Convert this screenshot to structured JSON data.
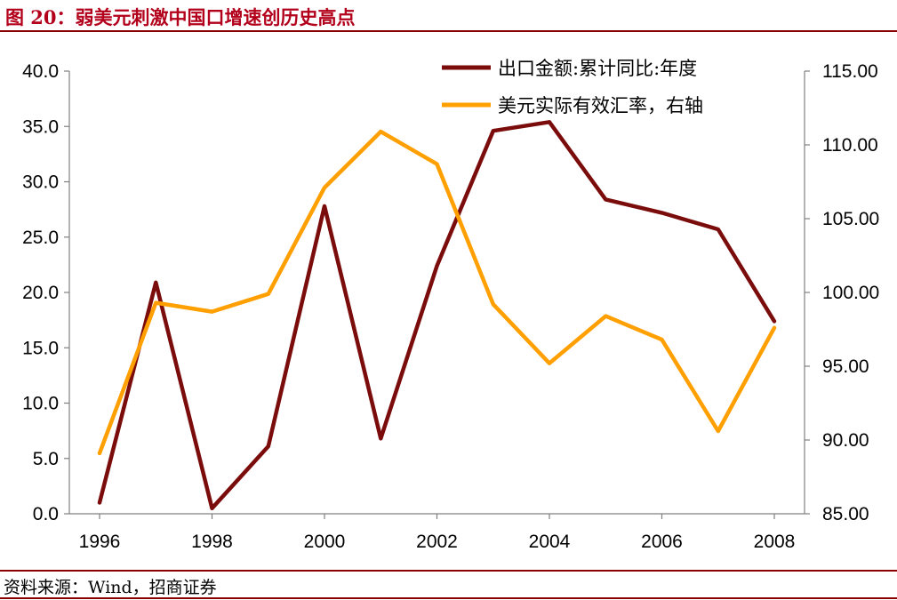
{
  "header": {
    "title": "图 20：弱美元刺激中国口增速创历史高点"
  },
  "footer": {
    "source": "资料来源：Wind，招商证券"
  },
  "colors": {
    "title": "#b3001b",
    "rule": "#8b0000",
    "series_export": "#7b0c0c",
    "series_usd": "#ff9f00",
    "axis": "#808080"
  },
  "chart_data": {
    "type": "line",
    "x": [
      1996,
      1997,
      1998,
      1999,
      2000,
      2001,
      2002,
      2003,
      2004,
      2005,
      2006,
      2007,
      2008
    ],
    "xticks": [
      "1996",
      "1998",
      "2000",
      "2002",
      "2004",
      "2006",
      "2008"
    ],
    "y_left": {
      "range": [
        0,
        40
      ],
      "ticks": [
        "0.0",
        "5.0",
        "10.0",
        "15.0",
        "20.0",
        "25.0",
        "30.0",
        "35.0",
        "40.0"
      ]
    },
    "y_right": {
      "range": [
        85,
        115
      ],
      "ticks": [
        "85.00",
        "90.00",
        "95.00",
        "100.00",
        "105.00",
        "110.00",
        "115.00"
      ]
    },
    "legend_position": "top-right",
    "series": [
      {
        "name": "出口金额:累计同比:年度",
        "axis": "left",
        "values": [
          1.0,
          20.9,
          0.5,
          6.1,
          27.8,
          6.8,
          22.4,
          34.6,
          35.4,
          28.4,
          27.2,
          25.7,
          17.4
        ]
      },
      {
        "name": "美元实际有效汇率，右轴",
        "axis": "right",
        "values": [
          89.1,
          99.3,
          98.7,
          99.9,
          107.1,
          110.9,
          108.7,
          99.2,
          95.2,
          98.4,
          96.8,
          90.6,
          97.6
        ]
      }
    ]
  }
}
